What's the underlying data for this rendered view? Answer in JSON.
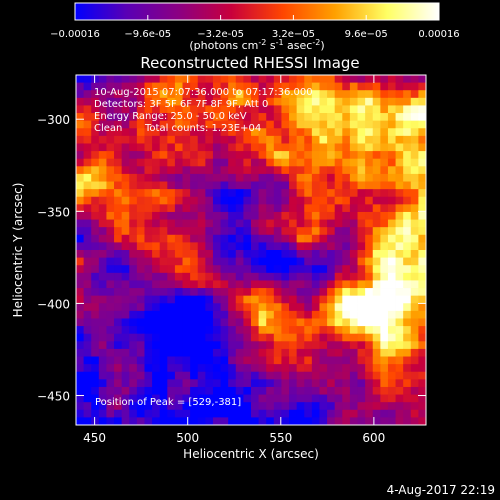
{
  "chart_data": {
    "type": "heatmap",
    "title": "Reconstructed RHESSI Image",
    "xlabel": "Heliocentric X (arcsec)",
    "ylabel": "Heliocentric Y (arcsec)",
    "xlim": [
      440,
      628
    ],
    "ylim": [
      -466,
      -276
    ],
    "x_ticks": [
      "450",
      "500",
      "550",
      "600"
    ],
    "x_tick_values": [
      450,
      500,
      550,
      600
    ],
    "y_ticks": [
      "-300",
      "-350",
      "-400",
      "-450"
    ],
    "y_tick_values": [
      -300,
      -350,
      -400,
      -450
    ],
    "colorbar": {
      "min_label": "-0.00016",
      "max_label": "0.00016",
      "tick_labels": [
        "-0.00016",
        "-9.6e-05",
        "-3.2e-05",
        "3.2e-05",
        "9.6e-05",
        "0.00016"
      ],
      "tick_values": [
        -0.00016,
        -9.6e-05,
        -3.2e-05,
        3.2e-05,
        9.6e-05,
        0.00016
      ],
      "unit_label": "(photons cm",
      "unit_exp1": "-2",
      "unit_mid": " s",
      "unit_exp2": "-1",
      "unit_mid2": " asec",
      "unit_exp3": "-2",
      "unit_end": ")",
      "colors": [
        "#0000ff",
        "#5a00b4",
        "#8c0082",
        "#c8003c",
        "#ff4600",
        "#ffa000",
        "#ffff64",
        "#ffffff"
      ]
    },
    "annotations": {
      "time_range": "10-Aug-2015 07:07:36.000 to 07:17:36.000",
      "detectors": "Detectors: 3F 5F 6F 7F 8F 9F, Att 0",
      "energy": "Energy Range: 25.0 - 50.0 keV",
      "clean": "Clean",
      "total_counts": "Total counts: 1.23E+04",
      "peak": "Position of Peak = [529,-381]"
    },
    "plot_timestamp": "4-Aug-2017 22:19"
  }
}
